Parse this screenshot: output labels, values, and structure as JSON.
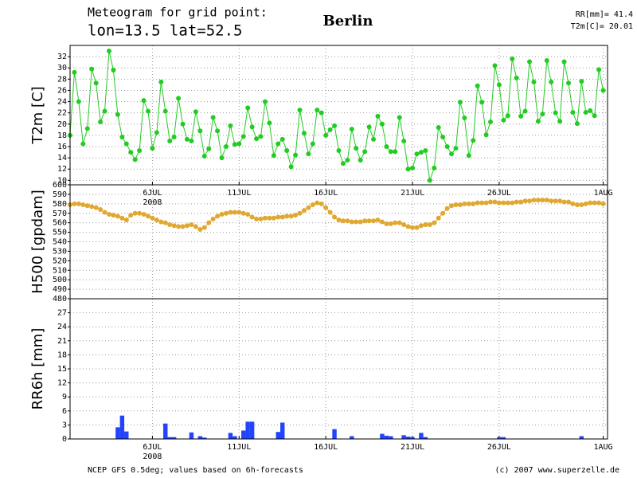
{
  "header": {
    "title": "Meteogram for grid point:",
    "location": "lon=13.5 lat=52.5",
    "city": "Berlin",
    "stat_rr": "RR[mm]= 41.4",
    "stat_t2m": "T2m[C]= 20.01"
  },
  "footer": {
    "source": "NCEP GFS 0.5deg; values based on 6h-forecasts",
    "credit": "(c) 2007 www.superzelle.de"
  },
  "x_axis": {
    "xlim": [
      1.25,
      32.25
    ],
    "year": "2008",
    "xticks": [
      {
        "value": 6,
        "label": "6JUL"
      },
      {
        "value": 11,
        "label": "11JUL"
      },
      {
        "value": 16,
        "label": "16JUL"
      },
      {
        "value": 21,
        "label": "21JUL"
      },
      {
        "value": 26,
        "label": "26JUL"
      },
      {
        "value": 32,
        "label": "1AUG"
      }
    ],
    "x": [
      1.25,
      1.5,
      1.75,
      2,
      2.25,
      2.5,
      2.75,
      3,
      3.25,
      3.5,
      3.75,
      4,
      4.25,
      4.5,
      4.75,
      5,
      5.25,
      5.5,
      5.75,
      6,
      6.25,
      6.5,
      6.75,
      7,
      7.25,
      7.5,
      7.75,
      8,
      8.25,
      8.5,
      8.75,
      9,
      9.25,
      9.5,
      9.75,
      10,
      10.25,
      10.5,
      10.75,
      11,
      11.25,
      11.5,
      11.75,
      12,
      12.25,
      12.5,
      12.75,
      13,
      13.25,
      13.5,
      13.75,
      14,
      14.25,
      14.5,
      14.75,
      15,
      15.25,
      15.5,
      15.75,
      16,
      16.25,
      16.5,
      16.75,
      17,
      17.25,
      17.5,
      17.75,
      18,
      18.25,
      18.5,
      18.75,
      19,
      19.25,
      19.5,
      19.75,
      20,
      20.25,
      20.5,
      20.75,
      21,
      21.25,
      21.5,
      21.75,
      22,
      22.25,
      22.5,
      22.75,
      23,
      23.25,
      23.5,
      23.75,
      24,
      24.25,
      24.5,
      24.75,
      25,
      25.25,
      25.5,
      25.75,
      26,
      26.25,
      26.5,
      26.75,
      27,
      27.25,
      27.5,
      27.75,
      28,
      28.25,
      28.5,
      28.75,
      29,
      29.25,
      29.5,
      29.75,
      30,
      30.25,
      30.5,
      30.75,
      31,
      31.25,
      31.5,
      31.75,
      32
    ]
  },
  "chart_data": [
    {
      "type": "line",
      "y_label": "T2m [C]",
      "color": "#22cc22",
      "ylim": [
        9.2,
        34
      ],
      "yticks": [
        10,
        12,
        14,
        16,
        18,
        20,
        22,
        24,
        26,
        28,
        30,
        32
      ],
      "grid": true,
      "show_xticks": true,
      "values": [
        18,
        29.2,
        24,
        16.5,
        19.2,
        29.8,
        27.3,
        20.4,
        22.3,
        33,
        29.6,
        21.7,
        17.7,
        16.5,
        15,
        13.7,
        15.3,
        24.2,
        22.3,
        15.7,
        18.5,
        27.5,
        22.3,
        17,
        17.7,
        24.6,
        20,
        17.3,
        17,
        22.2,
        18.8,
        14.3,
        15.6,
        21.2,
        18.8,
        14,
        16,
        19.7,
        16.4,
        16.5,
        17.8,
        22.9,
        19.5,
        17.4,
        17.8,
        24,
        20.2,
        14.4,
        16.5,
        17.3,
        15.3,
        12.4,
        14.5,
        22.5,
        18.4,
        14.7,
        16.5,
        22.5,
        22,
        18,
        19,
        19.7,
        15.3,
        13,
        13.6,
        19.1,
        15.7,
        13.6,
        15.1,
        19.5,
        17.3,
        21.4,
        20,
        16,
        15.1,
        15.1,
        21.2,
        17,
        12,
        12.2,
        14.7,
        15,
        15.3,
        10,
        12.2,
        19.4,
        17.7,
        16,
        14.7,
        15.7,
        23.9,
        21.1,
        14.4,
        17.1,
        26.8,
        23.9,
        18.1,
        20.4,
        30.4,
        27,
        20.7,
        21.5,
        31.6,
        28.2,
        21.4,
        22.3,
        31.1,
        27.5,
        20.5,
        21.8,
        31.3,
        27.5,
        22,
        20.5,
        31.1,
        27.3,
        22.1,
        20.1,
        27.6,
        22.1,
        22.4,
        21.5,
        29.7,
        26
      ]
    },
    {
      "type": "line",
      "y_label": "H500 [gpdam]",
      "color": "#e0a830",
      "ylim": [
        480,
        600
      ],
      "yticks": [
        480,
        490,
        500,
        510,
        520,
        530,
        540,
        550,
        560,
        570,
        580,
        590,
        600
      ],
      "grid": true,
      "show_xticks": false,
      "values": [
        579,
        580,
        580,
        579,
        578,
        577,
        576,
        574,
        571,
        569,
        568,
        567,
        565,
        563,
        568,
        570,
        570,
        569,
        567,
        565,
        563,
        561,
        560,
        558,
        557,
        556,
        556,
        557,
        558,
        556,
        553,
        555,
        560,
        564,
        567,
        569,
        570,
        571,
        571,
        571,
        570,
        569,
        566,
        564,
        564,
        565,
        565,
        565,
        566,
        566,
        567,
        567,
        568,
        570,
        573,
        576,
        579,
        581,
        580,
        576,
        571,
        566,
        563,
        562,
        562,
        561,
        561,
        561,
        562,
        562,
        562,
        563,
        561,
        559,
        559,
        560,
        560,
        558,
        556,
        555,
        555,
        557,
        558,
        558,
        560,
        565,
        570,
        575,
        578,
        579,
        579,
        580,
        580,
        580,
        581,
        581,
        581,
        582,
        582,
        581,
        581,
        581,
        581,
        582,
        582,
        583,
        583,
        584,
        584,
        584,
        584,
        583,
        583,
        583,
        582,
        582,
        580,
        579,
        579,
        580,
        581,
        581,
        581,
        580
      ]
    },
    {
      "type": "bar",
      "y_label": "RR6h [mm]",
      "color": "#2244ff",
      "ylim": [
        0,
        30
      ],
      "yticks": [
        0,
        3,
        6,
        9,
        12,
        15,
        18,
        21,
        24,
        27
      ],
      "grid": true,
      "show_xticks": true,
      "x": [
        4,
        4.25,
        4.5,
        6.75,
        7,
        7.25,
        8.25,
        8.75,
        9,
        10.5,
        10.75,
        11.25,
        11.5,
        11.75,
        13.25,
        13.5,
        16.5,
        17.5,
        19.25,
        19.5,
        19.75,
        20.5,
        20.75,
        21,
        21.5,
        21.75,
        26,
        26.25,
        30.75
      ],
      "values": [
        2.5,
        5,
        1.6,
        3.3,
        0.4,
        0.4,
        1.4,
        0.6,
        0.3,
        1.3,
        0.6,
        1.8,
        3.7,
        3.7,
        1.5,
        3.5,
        2.1,
        0.6,
        1.1,
        0.7,
        0.6,
        0.8,
        0.5,
        0.4,
        1.3,
        0.4,
        0.4,
        0.4,
        0.6
      ]
    }
  ]
}
